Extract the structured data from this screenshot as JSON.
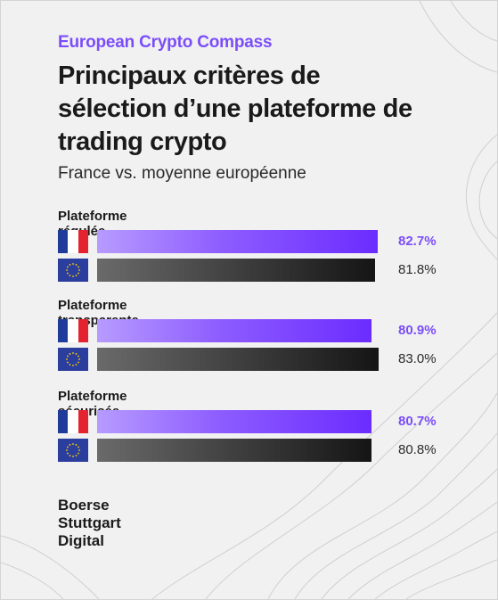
{
  "header": {
    "brand_title": "European Crypto Compass",
    "title_lines": [
      "Principaux critères de",
      "sélection d’une plateforme de",
      "trading crypto"
    ],
    "tagline": "France vs. moyenne européenne"
  },
  "chart_data": {
    "type": "bar",
    "orientation": "horizontal",
    "categories": [
      "Plateforme régulée",
      "Plateforme transparente",
      "Plateforme sécurisée"
    ],
    "series": [
      {
        "flag": "france-flag-icon",
        "values": [
          82.7,
          80.9,
          80.7
        ],
        "labels": [
          "82.7%",
          "80.9%",
          "80.7%"
        ],
        "color": "#7b4dfa"
      },
      {
        "flag": "eu-flag-icon",
        "values": [
          81.8,
          83.0,
          80.8
        ],
        "labels": [
          "81.8%",
          "83.0%",
          "80.8%"
        ],
        "color": "#2a2a2a"
      }
    ],
    "unit": "%",
    "xlim": [
      0,
      85
    ],
    "grid": false,
    "legend": "none"
  },
  "logo": {
    "lines": [
      "Boerse",
      "Stuttgart",
      "Digital"
    ]
  },
  "colors": {
    "accent": "#7b4dfa",
    "dark": "#1a1a1a",
    "background": "#f1f1f1"
  }
}
